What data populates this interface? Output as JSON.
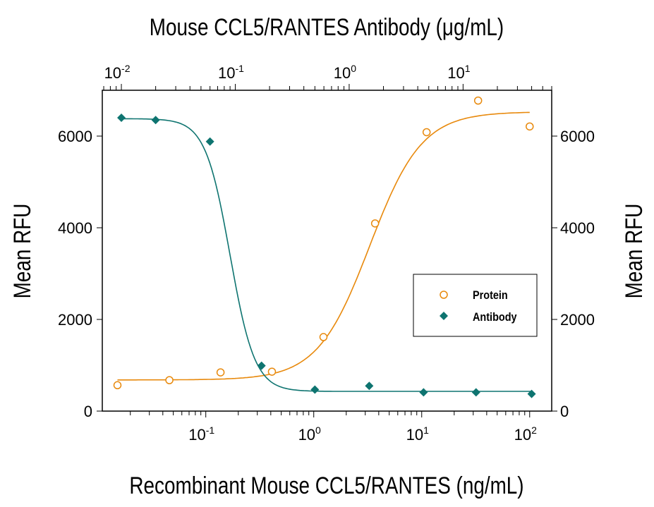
{
  "chart_data": {
    "type": "scatter",
    "top_title": "Mouse CCL5/RANTES Antibody (μg/mL)",
    "xlabel": "Recombinant Mouse CCL5/RANTES (ng/mL)",
    "ylabel_left": "Mean RFU",
    "ylabel_right": "Mean RFU",
    "x_scale": "log",
    "x_bottom_range": [
      0.011,
      160
    ],
    "x_top_range": [
      0.0068,
      60
    ],
    "ylim": [
      0,
      7000
    ],
    "y_ticks": [
      "0",
      "2000",
      "4000",
      "6000"
    ],
    "x_bottom_ticks": [
      {
        "base": "10",
        "exp": "-1"
      },
      {
        "base": "10",
        "exp": "0"
      },
      {
        "base": "10",
        "exp": "1"
      },
      {
        "base": "10",
        "exp": "2"
      }
    ],
    "x_top_ticks": [
      {
        "base": "10",
        "exp": "-2"
      },
      {
        "base": "10",
        "exp": "-1"
      },
      {
        "base": "10",
        "exp": "0"
      },
      {
        "base": "10",
        "exp": "1"
      }
    ],
    "grid": false,
    "legend_position": "center-right",
    "series": [
      {
        "name": "Protein",
        "axis": "bottom",
        "marker": "open-circle",
        "color": "#E8890C",
        "x": [
          0.0152,
          0.046,
          0.137,
          0.41,
          1.23,
          3.7,
          11.1,
          33.3,
          100
        ],
        "y": [
          565,
          675,
          845,
          860,
          1615,
          4095,
          6085,
          6775,
          6210
        ],
        "fit": {
          "bottom": 680,
          "top": 6530,
          "ec50": 3.3,
          "hill": 1.8
        }
      },
      {
        "name": "Antibody",
        "axis": "top",
        "marker": "diamond",
        "color": "#0E7470",
        "x": [
          0.01,
          0.02,
          0.06,
          0.17,
          0.5,
          1.5,
          4.5,
          13,
          40
        ],
        "y": [
          6400,
          6350,
          5880,
          990,
          470,
          550,
          410,
          410,
          375
        ],
        "fit": {
          "bottom": 430,
          "top": 6380,
          "ec50": 0.09,
          "hill": 4
        }
      }
    ]
  }
}
